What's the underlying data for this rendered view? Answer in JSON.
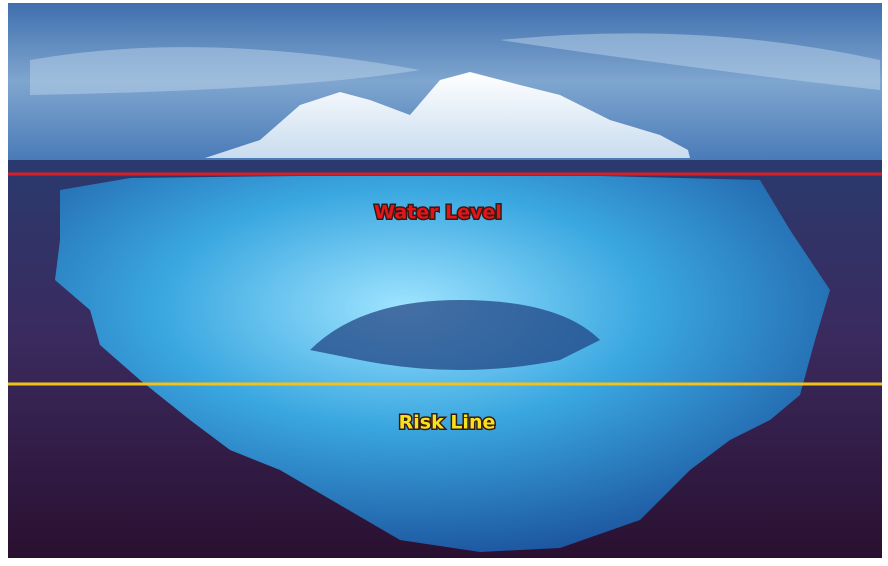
{
  "lines": [
    {
      "label": "Water Level"
    },
    {
      "label": "Risk Line"
    }
  ]
}
